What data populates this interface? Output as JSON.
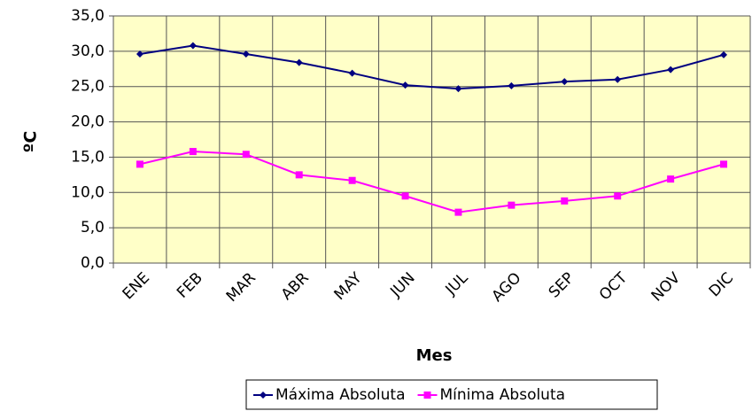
{
  "chart_data": {
    "type": "line",
    "x_label": "Mes",
    "y_label": "ºC",
    "categories": [
      "ENE",
      "FEB",
      "MAR",
      "ABR",
      "MAY",
      "JUN",
      "JUL",
      "AGO",
      "SEP",
      "OCT",
      "NOV",
      "DIC"
    ],
    "series": [
      {
        "name": "Máxima Absoluta",
        "color": "#000080",
        "values": [
          29.6,
          30.8,
          29.6,
          28.4,
          26.9,
          25.2,
          24.7,
          25.1,
          25.7,
          26.0,
          27.4,
          29.5
        ]
      },
      {
        "name": "Mínima Absoluta",
        "color": "#ff00ff",
        "values": [
          14.0,
          15.8,
          15.4,
          12.5,
          11.7,
          9.5,
          7.2,
          8.2,
          8.8,
          9.5,
          11.9,
          14.0
        ]
      }
    ],
    "ylim": [
      0,
      35
    ],
    "yticks": [
      {
        "value": 0,
        "label": "0,0"
      },
      {
        "value": 5,
        "label": "5,0"
      },
      {
        "value": 10,
        "label": "10,0"
      },
      {
        "value": 15,
        "label": "15,0"
      },
      {
        "value": 20,
        "label": "20,0"
      },
      {
        "value": 25,
        "label": "25,0"
      },
      {
        "value": 30,
        "label": "30,0"
      },
      {
        "value": 35,
        "label": "35,0"
      }
    ],
    "grid": true,
    "legend": "bottom",
    "plot_background": "#ffffc8"
  }
}
